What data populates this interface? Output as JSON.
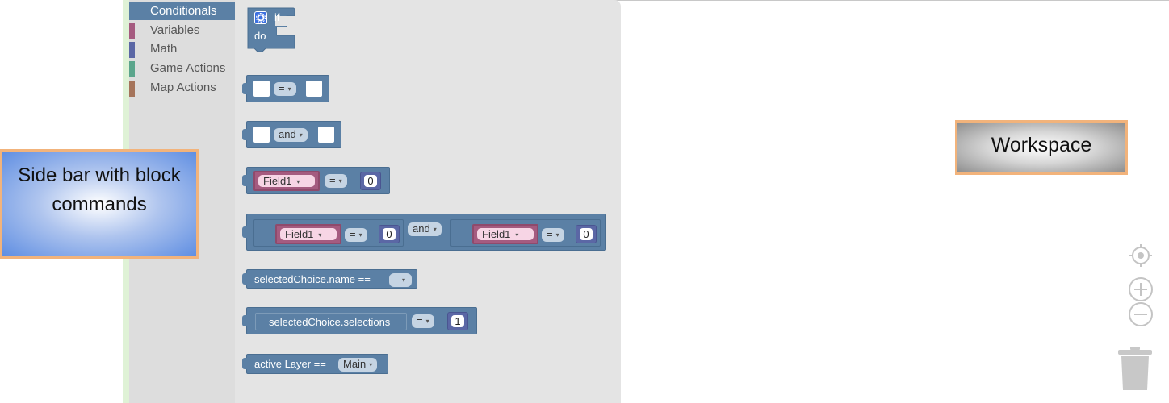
{
  "toolbox": {
    "categories": [
      {
        "label": "Conditionals",
        "color": "#5b80a5",
        "selected": true
      },
      {
        "label": "Variables",
        "color": "#a55b80",
        "selected": false
      },
      {
        "label": "Math",
        "color": "#5b67a5",
        "selected": false
      },
      {
        "label": "Game Actions",
        "color": "#5ba58c",
        "selected": false
      },
      {
        "label": "Map Actions",
        "color": "#a5745b",
        "selected": false
      }
    ]
  },
  "flyout": {
    "if_block": {
      "if_label": "if",
      "do_label": "do"
    },
    "compare_block": {
      "operator": "="
    },
    "logic_block": {
      "operator": "and"
    },
    "field_compare": {
      "field": "Field1",
      "operator": "=",
      "value": "0"
    },
    "combined_block": {
      "left_field": "Field1",
      "left_operator": "=",
      "left_value": "0",
      "joiner": "and",
      "right_field": "Field1",
      "right_operator": "=",
      "right_value": "0"
    },
    "selected_choice_name": {
      "label": "selectedChoice.name  ==",
      "value": ""
    },
    "selected_choice_selections": {
      "label": "selectedChoice.selections",
      "operator": "=",
      "value": "1"
    },
    "active_layer": {
      "label": "active Layer ==",
      "value": "Main"
    }
  },
  "callouts": {
    "sidebar": "Side bar with block commands",
    "workspace": "Workspace"
  },
  "colors": {
    "logic": "#5b80a5",
    "variables": "#a55b80",
    "math": "#5b67a5",
    "game_actions": "#5ba58c",
    "map_actions": "#a5745b",
    "callout_border": "#f2b37b"
  },
  "icons": [
    "gear-icon",
    "recenter-icon",
    "zoom-in-icon",
    "zoom-out-icon",
    "trash-icon"
  ]
}
